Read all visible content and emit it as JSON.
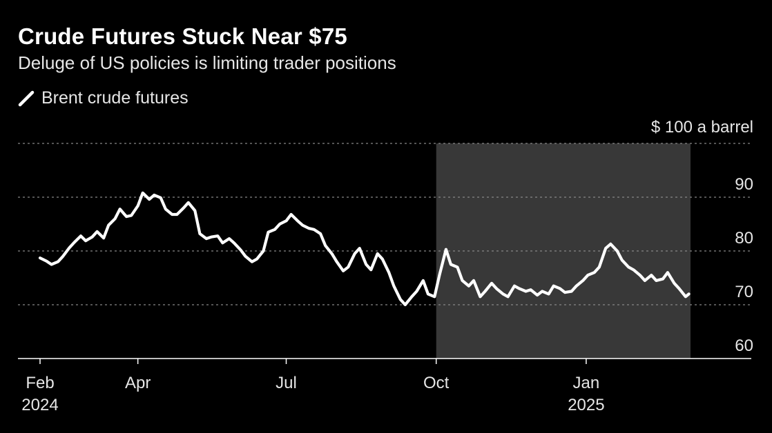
{
  "title": "Crude Futures Stuck Near $75",
  "subtitle": "Deluge of US policies is limiting trader positions",
  "legend": {
    "label": "Brent crude futures"
  },
  "chart_data": {
    "type": "line",
    "y_unit_label": "$ 100 a barrel",
    "ylim": [
      60,
      100
    ],
    "y_ticks": [
      {
        "value": 100,
        "label": ""
      },
      {
        "value": 90,
        "label": "90"
      },
      {
        "value": 80,
        "label": "80"
      },
      {
        "value": 70,
        "label": "70"
      },
      {
        "value": 60,
        "label": "60"
      }
    ],
    "x_range": [
      "2024-02-01",
      "2025-03-06"
    ],
    "x_ticks": [
      {
        "date": "2024-02-01",
        "label": "Feb",
        "sublabel": "2024"
      },
      {
        "date": "2024-04-01",
        "label": "Apr",
        "sublabel": ""
      },
      {
        "date": "2024-07-01",
        "label": "Jul",
        "sublabel": ""
      },
      {
        "date": "2024-10-01",
        "label": "Oct",
        "sublabel": ""
      },
      {
        "date": "2025-01-01",
        "label": "Jan",
        "sublabel": "2025"
      }
    ],
    "shaded_region": {
      "start": "2024-10-01",
      "end": "2025-03-06"
    },
    "colors": {
      "background": "#000000",
      "line": "#ffffff",
      "shade": "#383838",
      "grid": "#888888"
    },
    "grid": true,
    "series": [
      {
        "name": "Brent crude futures",
        "points": [
          [
            "2024-02-01",
            78.7
          ],
          [
            "2024-02-05",
            78.1
          ],
          [
            "2024-02-08",
            77.5
          ],
          [
            "2024-02-12",
            78.0
          ],
          [
            "2024-02-15",
            79.0
          ],
          [
            "2024-02-19",
            80.6
          ],
          [
            "2024-02-22",
            81.6
          ],
          [
            "2024-02-26",
            82.8
          ],
          [
            "2024-02-29",
            81.9
          ],
          [
            "2024-03-04",
            82.6
          ],
          [
            "2024-03-07",
            83.6
          ],
          [
            "2024-03-11",
            82.4
          ],
          [
            "2024-03-14",
            84.8
          ],
          [
            "2024-03-18",
            86.0
          ],
          [
            "2024-03-21",
            87.8
          ],
          [
            "2024-03-25",
            86.4
          ],
          [
            "2024-03-28",
            86.6
          ],
          [
            "2024-04-01",
            88.4
          ],
          [
            "2024-04-04",
            90.8
          ],
          [
            "2024-04-08",
            89.6
          ],
          [
            "2024-04-11",
            90.4
          ],
          [
            "2024-04-15",
            89.9
          ],
          [
            "2024-04-18",
            87.8
          ],
          [
            "2024-04-22",
            86.8
          ],
          [
            "2024-04-25",
            86.8
          ],
          [
            "2024-04-29",
            88.0
          ],
          [
            "2024-05-02",
            89.0
          ],
          [
            "2024-05-06",
            87.5
          ],
          [
            "2024-05-09",
            83.2
          ],
          [
            "2024-05-13",
            82.3
          ],
          [
            "2024-05-16",
            82.6
          ],
          [
            "2024-05-20",
            82.8
          ],
          [
            "2024-05-23",
            81.5
          ],
          [
            "2024-05-27",
            82.3
          ],
          [
            "2024-05-30",
            81.5
          ],
          [
            "2024-06-03",
            80.2
          ],
          [
            "2024-06-06",
            79.0
          ],
          [
            "2024-06-10",
            78.0
          ],
          [
            "2024-06-13",
            78.5
          ],
          [
            "2024-06-17",
            80.0
          ],
          [
            "2024-06-20",
            83.5
          ],
          [
            "2024-06-24",
            84.0
          ],
          [
            "2024-06-27",
            85.0
          ],
          [
            "2024-07-01",
            85.6
          ],
          [
            "2024-07-04",
            86.8
          ],
          [
            "2024-07-08",
            85.6
          ],
          [
            "2024-07-11",
            84.8
          ],
          [
            "2024-07-15",
            84.2
          ],
          [
            "2024-07-18",
            84.0
          ],
          [
            "2024-07-22",
            83.2
          ],
          [
            "2024-07-25",
            81.0
          ],
          [
            "2024-07-29",
            79.5
          ],
          [
            "2024-08-01",
            78.0
          ],
          [
            "2024-08-05",
            76.3
          ],
          [
            "2024-08-08",
            77.0
          ],
          [
            "2024-08-12",
            79.5
          ],
          [
            "2024-08-15",
            80.5
          ],
          [
            "2024-08-19",
            77.5
          ],
          [
            "2024-08-22",
            76.5
          ],
          [
            "2024-08-26",
            79.5
          ],
          [
            "2024-08-29",
            78.5
          ],
          [
            "2024-09-02",
            76.0
          ],
          [
            "2024-09-05",
            73.5
          ],
          [
            "2024-09-09",
            71.0
          ],
          [
            "2024-09-12",
            70.0
          ],
          [
            "2024-09-16",
            71.5
          ],
          [
            "2024-09-19",
            72.5
          ],
          [
            "2024-09-23",
            74.5
          ],
          [
            "2024-09-26",
            72.0
          ],
          [
            "2024-09-30",
            71.5
          ],
          [
            "2024-10-03",
            75.5
          ],
          [
            "2024-10-07",
            80.3
          ],
          [
            "2024-10-10",
            77.5
          ],
          [
            "2024-10-14",
            77.0
          ],
          [
            "2024-10-17",
            74.5
          ],
          [
            "2024-10-21",
            73.5
          ],
          [
            "2024-10-24",
            74.5
          ],
          [
            "2024-10-28",
            71.5
          ],
          [
            "2024-10-31",
            72.5
          ],
          [
            "2024-11-04",
            74.0
          ],
          [
            "2024-11-07",
            73.0
          ],
          [
            "2024-11-11",
            72.0
          ],
          [
            "2024-11-14",
            71.5
          ],
          [
            "2024-11-18",
            73.5
          ],
          [
            "2024-11-21",
            73.0
          ],
          [
            "2024-11-25",
            72.5
          ],
          [
            "2024-11-28",
            72.8
          ],
          [
            "2024-12-02",
            71.8
          ],
          [
            "2024-12-05",
            72.5
          ],
          [
            "2024-12-09",
            72.0
          ],
          [
            "2024-12-12",
            73.5
          ],
          [
            "2024-12-16",
            73.0
          ],
          [
            "2024-12-19",
            72.3
          ],
          [
            "2024-12-23",
            72.5
          ],
          [
            "2024-12-26",
            73.5
          ],
          [
            "2024-12-30",
            74.5
          ],
          [
            "2025-01-02",
            75.5
          ],
          [
            "2025-01-06",
            76.0
          ],
          [
            "2025-01-09",
            77.0
          ],
          [
            "2025-01-13",
            80.5
          ],
          [
            "2025-01-16",
            81.3
          ],
          [
            "2025-01-20",
            80.0
          ],
          [
            "2025-01-23",
            78.3
          ],
          [
            "2025-01-27",
            77.0
          ],
          [
            "2025-01-30",
            76.5
          ],
          [
            "2025-02-03",
            75.5
          ],
          [
            "2025-02-06",
            74.5
          ],
          [
            "2025-02-10",
            75.5
          ],
          [
            "2025-02-13",
            74.5
          ],
          [
            "2025-02-17",
            74.8
          ],
          [
            "2025-02-20",
            76.0
          ],
          [
            "2025-02-24",
            74.0
          ],
          [
            "2025-02-27",
            73.0
          ],
          [
            "2025-03-03",
            71.5
          ],
          [
            "2025-03-05",
            72.0
          ]
        ]
      }
    ]
  }
}
